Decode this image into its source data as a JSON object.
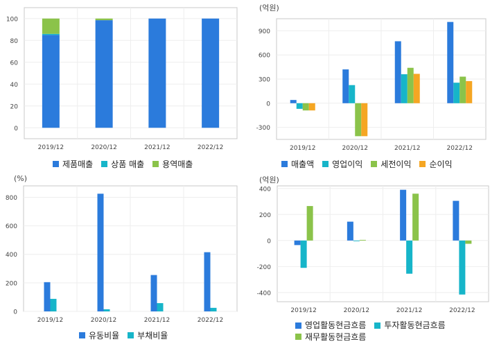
{
  "chart_data": [
    {
      "type": "bar",
      "stacked": true,
      "unit_label": "",
      "categories": [
        "2019/12",
        "2020/12",
        "2021/12",
        "2022/12"
      ],
      "ylim": [
        -10,
        110
      ],
      "yticks": [
        0,
        20,
        40,
        60,
        80,
        100
      ],
      "grid": true,
      "legend_position": "bottom",
      "series": [
        {
          "name": "제품매출",
          "color": "#2b7bdc",
          "values": [
            85,
            98.5,
            100,
            100
          ]
        },
        {
          "name": "상품 매출",
          "color": "#17b5c9",
          "values": [
            1,
            0,
            0,
            0
          ]
        },
        {
          "name": "용역매출",
          "color": "#8bc34a",
          "values": [
            14,
            1.5,
            0,
            0
          ]
        }
      ]
    },
    {
      "type": "bar",
      "stacked": false,
      "unit_label": "(억원)",
      "categories": [
        "2019/12",
        "2020/12",
        "2021/12",
        "2022/12"
      ],
      "ylim": [
        -450,
        1050
      ],
      "yticks": [
        -300,
        0,
        300,
        600,
        900
      ],
      "grid": true,
      "legend_position": "bottom",
      "series": [
        {
          "name": "매출액",
          "color": "#2b7bdc",
          "values": [
            40,
            420,
            770,
            1010
          ]
        },
        {
          "name": "영업이익",
          "color": "#17b5c9",
          "values": [
            -70,
            225,
            360,
            255
          ]
        },
        {
          "name": "세전이익",
          "color": "#8bc34a",
          "values": [
            -90,
            -410,
            440,
            330
          ]
        },
        {
          "name": "순이익",
          "color": "#f5a623",
          "values": [
            -90,
            -410,
            365,
            275
          ]
        }
      ]
    },
    {
      "type": "bar",
      "stacked": false,
      "unit_label": "(%)",
      "categories": [
        "2019/12",
        "2020/12",
        "2021/12",
        "2022/12"
      ],
      "ylim": [
        0,
        880
      ],
      "yticks": [
        0,
        200,
        400,
        600,
        800
      ],
      "grid": true,
      "legend_position": "bottom",
      "series": [
        {
          "name": "유동비율",
          "color": "#2b7bdc",
          "values": [
            205,
            825,
            255,
            415
          ]
        },
        {
          "name": "부채비율",
          "color": "#17b5c9",
          "values": [
            88,
            15,
            58,
            25
          ]
        }
      ]
    },
    {
      "type": "bar",
      "stacked": false,
      "unit_label": "(억원)",
      "categories": [
        "2019/12",
        "2020/12",
        "2021/12",
        "2022/12"
      ],
      "ylim": [
        -470,
        420
      ],
      "yticks": [
        -400,
        -200,
        0,
        200,
        400
      ],
      "grid": true,
      "legend_position": "bottom",
      "series": [
        {
          "name": "영업활동현금흐름",
          "color": "#2b7bdc",
          "values": [
            -35,
            145,
            390,
            305
          ]
        },
        {
          "name": "투자활동현금흐름",
          "color": "#17b5c9",
          "values": [
            -210,
            -5,
            -255,
            -415
          ]
        },
        {
          "name": "재무활동현금흐름",
          "color": "#8bc34a",
          "values": [
            265,
            5,
            360,
            -25
          ]
        }
      ]
    }
  ]
}
